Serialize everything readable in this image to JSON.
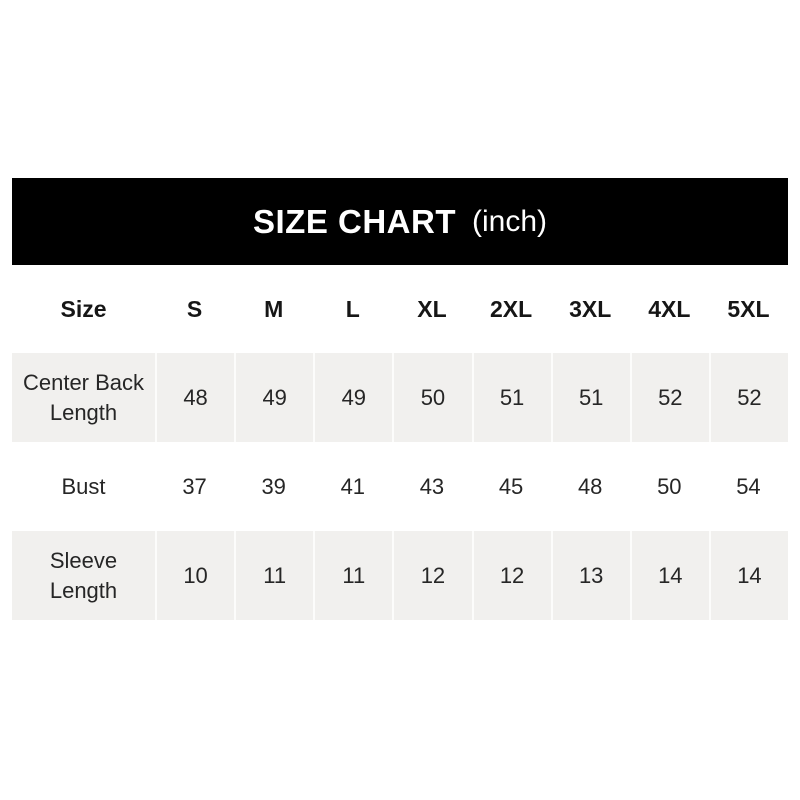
{
  "banner": {
    "title": "SIZE CHART",
    "unit_label": "(inch)"
  },
  "chart_data": {
    "type": "table",
    "title": "SIZE CHART",
    "unit": "inch",
    "columns": [
      "Size",
      "S",
      "M",
      "L",
      "XL",
      "2XL",
      "3XL",
      "4XL",
      "5XL"
    ],
    "rows": [
      {
        "label": "Center Back Length",
        "values": [
          "48",
          "49",
          "49",
          "50",
          "51",
          "51",
          "52",
          "52"
        ]
      },
      {
        "label": "Bust",
        "values": [
          "37",
          "39",
          "41",
          "43",
          "45",
          "48",
          "50",
          "54"
        ]
      },
      {
        "label": "Sleeve Length",
        "values": [
          "10",
          "11",
          "11",
          "12",
          "12",
          "13",
          "14",
          "14"
        ]
      }
    ],
    "layout": {
      "striped_rows": [
        0,
        2
      ],
      "grid": "off",
      "legend": "none"
    }
  },
  "colors": {
    "banner_bg": "#000000",
    "banner_text": "#ffffff",
    "row_alt_bg": "#f1f0ee",
    "separator": "#fcfcfb",
    "text": "#262626"
  }
}
